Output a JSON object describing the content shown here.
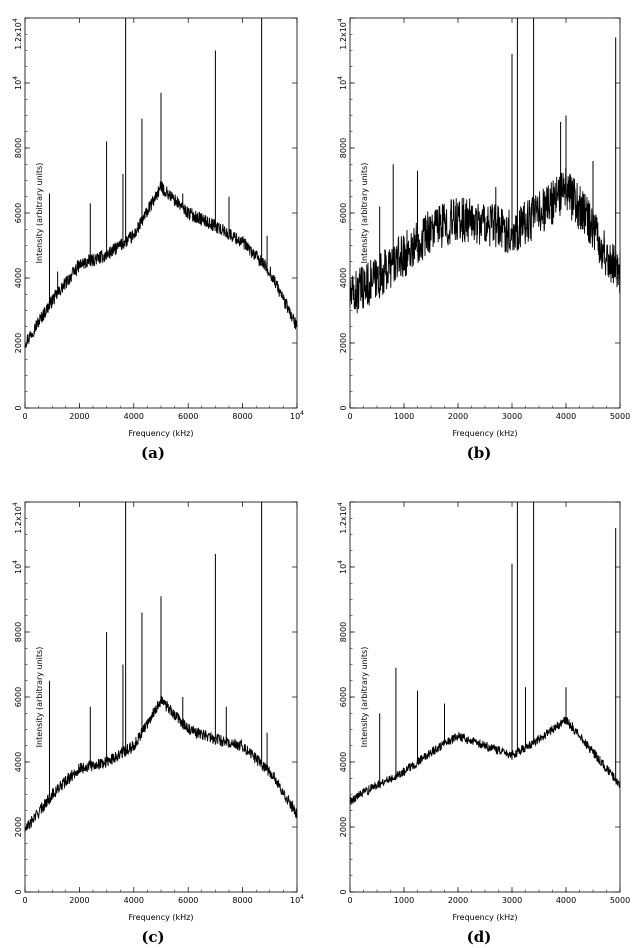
{
  "chart_data": [
    {
      "type": "line",
      "caption": "(a)",
      "xlabel": "Frequency (kHz)",
      "ylabel": "Intensity (arbitrary units)",
      "xlim": [
        0,
        10000
      ],
      "ylim": [
        0,
        12000
      ],
      "xticks": [
        {
          "v": 0,
          "t": "0"
        },
        {
          "v": 2000,
          "t": "2000"
        },
        {
          "v": 4000,
          "t": "4000"
        },
        {
          "v": 6000,
          "t": "6000"
        },
        {
          "v": 8000,
          "t": "8000"
        },
        {
          "v": 10000,
          "t": "10^4"
        }
      ],
      "yticks": [
        {
          "v": 0,
          "t": "0"
        },
        {
          "v": 2000,
          "t": "2000"
        },
        {
          "v": 4000,
          "t": "4000"
        },
        {
          "v": 6000,
          "t": "6000"
        },
        {
          "v": 8000,
          "t": "8000"
        },
        {
          "v": 10000,
          "t": "10^4"
        },
        {
          "v": 12000,
          "t": "1.2x10^4"
        }
      ],
      "baseline": [
        [
          0,
          2000
        ],
        [
          1000,
          3300
        ],
        [
          2000,
          4400
        ],
        [
          3000,
          4700
        ],
        [
          4000,
          5300
        ],
        [
          5000,
          6800
        ],
        [
          6000,
          6000
        ],
        [
          7000,
          5600
        ],
        [
          8000,
          5100
        ],
        [
          9000,
          4200
        ],
        [
          10000,
          2500
        ]
      ],
      "noise": 200,
      "spikes": [
        [
          900,
          6600
        ],
        [
          1200,
          4200
        ],
        [
          2400,
          6300
        ],
        [
          3000,
          8200
        ],
        [
          3600,
          7200
        ],
        [
          3700,
          12000
        ],
        [
          4300,
          8900
        ],
        [
          5000,
          9700
        ],
        [
          5800,
          6600
        ],
        [
          7000,
          11000
        ],
        [
          7500,
          6500
        ],
        [
          8700,
          12000
        ],
        [
          8900,
          5300
        ]
      ]
    },
    {
      "type": "line",
      "caption": "(b)",
      "xlabel": "Frequency (kHz)",
      "ylabel": "Intensity (arbitrary units)",
      "xlim": [
        0,
        5000
      ],
      "ylim": [
        0,
        12000
      ],
      "xticks": [
        {
          "v": 0,
          "t": "0"
        },
        {
          "v": 1000,
          "t": "1000"
        },
        {
          "v": 2000,
          "t": "2000"
        },
        {
          "v": 3000,
          "t": "3000"
        },
        {
          "v": 4000,
          "t": "4000"
        },
        {
          "v": 5000,
          "t": "5000"
        }
      ],
      "yticks": [
        {
          "v": 0,
          "t": "0"
        },
        {
          "v": 2000,
          "t": "2000"
        },
        {
          "v": 4000,
          "t": "4000"
        },
        {
          "v": 6000,
          "t": "6000"
        },
        {
          "v": 8000,
          "t": "8000"
        },
        {
          "v": 10000,
          "t": "10^4"
        },
        {
          "v": 12000,
          "t": "1.2x10^4"
        }
      ],
      "baseline": [
        [
          0,
          3400
        ],
        [
          500,
          4000
        ],
        [
          1000,
          4700
        ],
        [
          1500,
          5500
        ],
        [
          2000,
          5800
        ],
        [
          2500,
          5700
        ],
        [
          3000,
          5400
        ],
        [
          3500,
          6000
        ],
        [
          4000,
          6700
        ],
        [
          4500,
          5600
        ],
        [
          4700,
          4800
        ],
        [
          5000,
          4200
        ]
      ],
      "noise": 700,
      "spikes": [
        [
          550,
          6200
        ],
        [
          800,
          7500
        ],
        [
          1250,
          7300
        ],
        [
          2700,
          6800
        ],
        [
          3000,
          10900
        ],
        [
          3100,
          12000
        ],
        [
          3400,
          12000
        ],
        [
          3900,
          8800
        ],
        [
          4000,
          9000
        ],
        [
          4500,
          7600
        ],
        [
          4920,
          11400
        ]
      ]
    },
    {
      "type": "line",
      "caption": "(c)",
      "xlabel": "Frequency (kHz)",
      "ylabel": "Intensity (arbitrary units)",
      "xlim": [
        0,
        10000
      ],
      "ylim": [
        0,
        12000
      ],
      "xticks": [
        {
          "v": 0,
          "t": "0"
        },
        {
          "v": 2000,
          "t": "2000"
        },
        {
          "v": 4000,
          "t": "4000"
        },
        {
          "v": 6000,
          "t": "6000"
        },
        {
          "v": 8000,
          "t": "8000"
        },
        {
          "v": 10000,
          "t": "10^4"
        }
      ],
      "yticks": [
        {
          "v": 0,
          "t": "0"
        },
        {
          "v": 2000,
          "t": "2000"
        },
        {
          "v": 4000,
          "t": "4000"
        },
        {
          "v": 6000,
          "t": "6000"
        },
        {
          "v": 8000,
          "t": "8000"
        },
        {
          "v": 10000,
          "t": "10^4"
        },
        {
          "v": 12000,
          "t": "1.2x10^4"
        }
      ],
      "baseline": [
        [
          0,
          1900
        ],
        [
          1000,
          3000
        ],
        [
          2000,
          3800
        ],
        [
          3000,
          4000
        ],
        [
          4000,
          4500
        ],
        [
          5000,
          5900
        ],
        [
          6000,
          5000
        ],
        [
          7000,
          4700
        ],
        [
          8000,
          4500
        ],
        [
          9000,
          3700
        ],
        [
          10000,
          2400
        ]
      ],
      "noise": 180,
      "spikes": [
        [
          900,
          6500
        ],
        [
          2400,
          5700
        ],
        [
          3000,
          8000
        ],
        [
          3600,
          7000
        ],
        [
          3700,
          12000
        ],
        [
          4300,
          8600
        ],
        [
          5000,
          9100
        ],
        [
          5800,
          6000
        ],
        [
          7000,
          10400
        ],
        [
          7400,
          5700
        ],
        [
          8700,
          12000
        ],
        [
          8900,
          4900
        ]
      ]
    },
    {
      "type": "line",
      "caption": "(d)",
      "xlabel": "Frequency (kHz)",
      "ylabel": "Intensity (arbitrary units)",
      "xlim": [
        0,
        5000
      ],
      "ylim": [
        0,
        12000
      ],
      "xticks": [
        {
          "v": 0,
          "t": "0"
        },
        {
          "v": 1000,
          "t": "1000"
        },
        {
          "v": 2000,
          "t": "2000"
        },
        {
          "v": 3000,
          "t": "3000"
        },
        {
          "v": 4000,
          "t": "4000"
        },
        {
          "v": 5000,
          "t": "5000"
        }
      ],
      "yticks": [
        {
          "v": 0,
          "t": "0"
        },
        {
          "v": 2000,
          "t": "2000"
        },
        {
          "v": 4000,
          "t": "4000"
        },
        {
          "v": 6000,
          "t": "6000"
        },
        {
          "v": 8000,
          "t": "8000"
        },
        {
          "v": 10000,
          "t": "10^4"
        },
        {
          "v": 12000,
          "t": "1.2x10^4"
        }
      ],
      "baseline": [
        [
          0,
          2800
        ],
        [
          500,
          3300
        ],
        [
          1000,
          3700
        ],
        [
          1500,
          4300
        ],
        [
          2000,
          4800
        ],
        [
          2500,
          4500
        ],
        [
          3000,
          4200
        ],
        [
          3500,
          4700
        ],
        [
          4000,
          5300
        ],
        [
          4500,
          4300
        ],
        [
          5000,
          3300
        ]
      ],
      "noise": 140,
      "spikes": [
        [
          550,
          5500
        ],
        [
          850,
          6900
        ],
        [
          1250,
          6200
        ],
        [
          1750,
          5800
        ],
        [
          3000,
          10100
        ],
        [
          3100,
          12000
        ],
        [
          3250,
          6300
        ],
        [
          3400,
          12000
        ],
        [
          4000,
          6300
        ],
        [
          4920,
          11200
        ]
      ]
    }
  ]
}
